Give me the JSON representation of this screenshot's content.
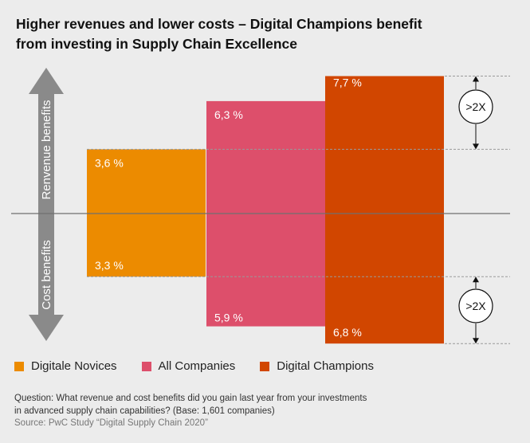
{
  "title_line1": "Higher revenues and lower costs – Digital Champions benefit",
  "title_line2": "from investing in Supply Chain Excellence",
  "axis_label_top": "Renvenue benefits",
  "axis_label_bottom": "Cost benefits",
  "multiplier_label": ">2X",
  "footnote": {
    "question_line1": "Question: What revenue and cost benefits did you gain last year from your investments",
    "question_line2": "in advanced supply chain capabilities? (Base: 1,601 companies)",
    "source": "Source: PwC Study “Digital Supply Chain 2020”"
  },
  "colors": {
    "background": "#ececec",
    "arrow": "#8a8a8a",
    "baseline": "#707070",
    "dashed": "#9a9a9a"
  },
  "chart_data": {
    "type": "bar",
    "categories": [
      "Digitale Novices",
      "All Companies",
      "Digital Champions"
    ],
    "series": [
      {
        "name": "Revenue benefits",
        "values": [
          3.6,
          6.3,
          7.7
        ],
        "labels": [
          "3,6 %",
          "6,3 %",
          "7,7 %"
        ]
      },
      {
        "name": "Cost benefits",
        "values": [
          3.3,
          5.9,
          6.8
        ],
        "labels": [
          "3,3 %",
          "5,9 %",
          "6,8 %"
        ]
      }
    ],
    "colors": [
      "#ec8b00",
      "#dd4f6b",
      "#d14600"
    ],
    "legend": [
      "Digitale Novices",
      "All Companies",
      "Digital Champions"
    ],
    "legend_position": "bottom-left"
  }
}
